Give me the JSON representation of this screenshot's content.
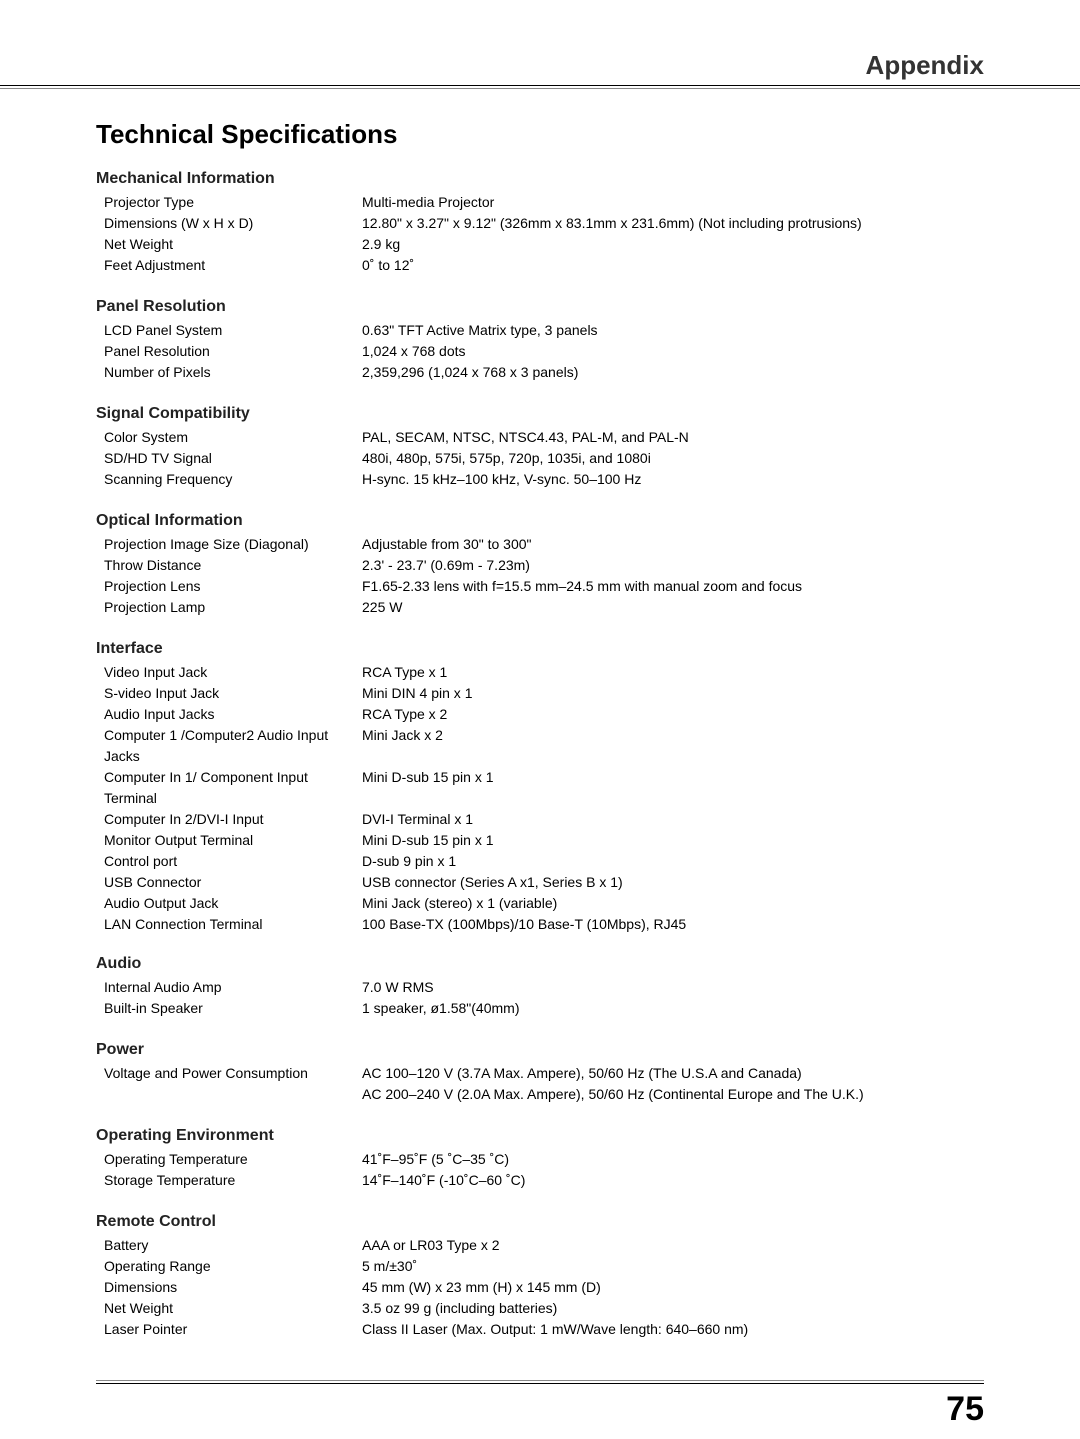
{
  "header": {
    "title": "Appendix"
  },
  "main_title": "Technical Specifications",
  "page_number": "75",
  "sections": [
    {
      "title": "Mechanical Information",
      "rows": [
        {
          "label": "Projector Type",
          "value": "Multi-media Projector"
        },
        {
          "label": "Dimensions (W x H x D)",
          "value": "12.80\" x  3.27\" x  9.12\" (326mm x 83.1mm x 231.6mm)  (Not including protrusions)"
        },
        {
          "label": "Net Weight",
          "value": "2.9 kg"
        },
        {
          "label": "Feet Adjustment",
          "value": "0˚ to 12˚"
        }
      ]
    },
    {
      "title": "Panel Resolution",
      "rows": [
        {
          "label": "LCD Panel System",
          "value": "0.63\" TFT Active Matrix type, 3 panels"
        },
        {
          "label": "Panel Resolution",
          "value": "1,024 x 768 dots"
        },
        {
          "label": "Number of Pixels",
          "value": "2,359,296 (1,024 x 768 x 3 panels)"
        }
      ]
    },
    {
      "title": "Signal Compatibility",
      "rows": [
        {
          "label": "Color System",
          "value": "PAL, SECAM, NTSC, NTSC4.43, PAL-M, and PAL-N"
        },
        {
          "label": "SD/HD TV Signal",
          "value": "480i, 480p, 575i, 575p, 720p, 1035i, and 1080i"
        },
        {
          "label": "Scanning Frequency",
          "value": "H-sync. 15 kHz–100 kHz, V-sync. 50–100 Hz"
        }
      ]
    },
    {
      "title": "Optical Information",
      "rows": [
        {
          "label": "Projection Image Size (Diagonal)",
          "value": "Adjustable from 30\" to 300\""
        },
        {
          "label": "Throw Distance",
          "value": "2.3' - 23.7' (0.69m - 7.23m)"
        },
        {
          "label": "Projection Lens",
          "value": "F1.65-2.33 lens with f=15.5 mm–24.5 mm with manual zoom and focus"
        },
        {
          "label": "Projection Lamp",
          "value": "225 W"
        }
      ]
    },
    {
      "title": "Interface",
      "rows": [
        {
          "label": "Video Input Jack",
          "value": "RCA Type x 1"
        },
        {
          "label": "S-video Input Jack",
          "value": "Mini DIN 4 pin x 1"
        },
        {
          "label": "Audio Input Jacks",
          "value": "RCA Type x 2"
        },
        {
          "label": "Computer 1 /Computer2 Audio Input Jacks",
          "value": "Mini Jack x 2"
        },
        {
          "label": "Computer In 1/ Component Input Terminal",
          "value": "Mini D-sub 15 pin x 1"
        },
        {
          "label": "Computer In 2/DVI-I Input",
          "value": "DVI-I Terminal x 1"
        },
        {
          "label": "Monitor Output Terminal",
          "value": "Mini D-sub 15 pin x 1"
        },
        {
          "label": "Control port",
          "value": "D-sub 9 pin x 1"
        },
        {
          "label": "USB Connector",
          "value": "USB connector (Series A x1, Series B x 1)"
        },
        {
          "label": "Audio Output Jack",
          "value": "Mini Jack (stereo) x 1 (variable)"
        },
        {
          "label": "LAN Connection Terminal",
          "value": "100 Base-TX (100Mbps)/10 Base-T (10Mbps), RJ45"
        }
      ]
    },
    {
      "title": "Audio",
      "extra_gap": true,
      "rows": [
        {
          "label": "Internal Audio Amp",
          "value": "7.0 W RMS"
        },
        {
          "label": "Built-in Speaker",
          "value": "1 speaker, ø1.58\"(40mm)"
        }
      ]
    },
    {
      "title": "Power",
      "rows": [
        {
          "label": "Voltage and Power Consumption",
          "value": "AC 100–120 V (3.7A Max. Ampere), 50/60 Hz (The U.S.A and Canada)"
        },
        {
          "label": "",
          "value": "AC 200–240 V (2.0A Max. Ampere), 50/60 Hz (Continental Europe and The U.K.)"
        }
      ]
    },
    {
      "title": "Operating Environment",
      "rows": [
        {
          "label": "Operating Temperature",
          "value": "41˚F–95˚F (5 ˚C–35 ˚C)"
        },
        {
          "label": "Storage Temperature",
          "value": "14˚F–140˚F (-10˚C–60 ˚C)"
        }
      ]
    },
    {
      "title": "Remote Control",
      "rows": [
        {
          "label": "Battery",
          "value": "AAA or LR03 Type x 2"
        },
        {
          "label": "Operating Range",
          "value": "5 m/±30˚"
        },
        {
          "label": "Dimensions",
          "value": "45 mm (W) x 23 mm (H) x 145 mm (D)"
        },
        {
          "label": "Net Weight",
          "value": "3.5 oz 99 g (including batteries)"
        },
        {
          "label": "Laser Pointer",
          "value": "Class II Laser (Max. Output: 1 mW/Wave length: 640–660 nm)"
        }
      ]
    }
  ]
}
